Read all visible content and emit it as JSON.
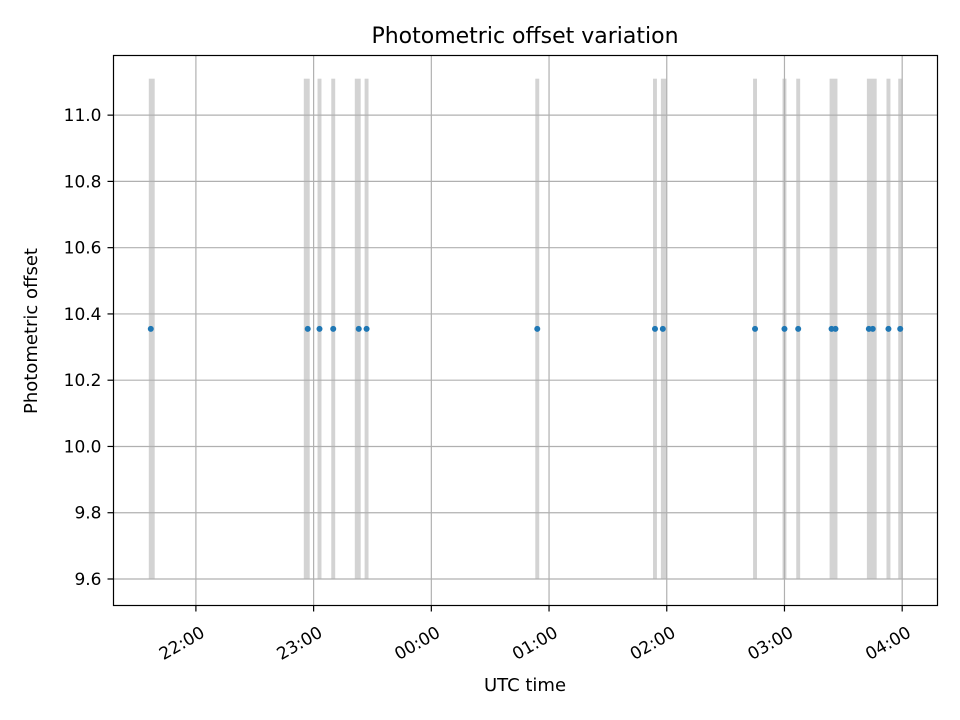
{
  "chart_data": {
    "type": "scatter",
    "title": "Photometric offset variation",
    "xlabel": "UTC time",
    "ylabel": "Photometric offset",
    "xlim": [
      "21:18",
      "04:18"
    ],
    "ylim": [
      9.52,
      11.18
    ],
    "x_ticks": [
      "22:00",
      "23:00",
      "00:00",
      "01:00",
      "02:00",
      "03:00",
      "04:00"
    ],
    "y_ticks": [
      "9.6",
      "9.8",
      "10.0",
      "10.2",
      "10.4",
      "10.6",
      "10.8",
      "11.0"
    ],
    "grid": true,
    "colors": {
      "points": "#1f77b4",
      "spans": "#d3d3d3",
      "grid": "#b0b0b0"
    },
    "interval_band": {
      "ymin": 9.6,
      "ymax": 11.11
    },
    "series": [
      {
        "x": [
          "21:37",
          "22:57",
          "23:03",
          "23:10",
          "23:23",
          "23:27",
          "00:54",
          "01:54",
          "01:58",
          "02:45",
          "03:00",
          "03:07",
          "03:24",
          "03:26",
          "03:43",
          "03:45",
          "03:53",
          "03:59"
        ],
        "y": [
          10.355,
          10.355,
          10.355,
          10.355,
          10.355,
          10.355,
          10.355,
          10.355,
          10.355,
          10.355,
          10.355,
          10.355,
          10.355,
          10.355,
          10.355,
          10.355,
          10.355,
          10.355
        ]
      }
    ],
    "intervals": [
      [
        "21:36",
        "21:39"
      ],
      [
        "22:55",
        "22:58"
      ],
      [
        "23:02",
        "23:04"
      ],
      [
        "23:09",
        "23:11"
      ],
      [
        "23:21",
        "23:24"
      ],
      [
        "23:26",
        "23:28"
      ],
      [
        "00:53",
        "00:55"
      ],
      [
        "01:53",
        "01:55"
      ],
      [
        "01:57",
        "02:00"
      ],
      [
        "02:44",
        "02:46"
      ],
      [
        "02:59",
        "03:01"
      ],
      [
        "03:06",
        "03:08"
      ],
      [
        "03:23",
        "03:27"
      ],
      [
        "03:42",
        "03:47"
      ],
      [
        "03:52",
        "03:54"
      ],
      [
        "03:58",
        "04:00"
      ]
    ]
  }
}
